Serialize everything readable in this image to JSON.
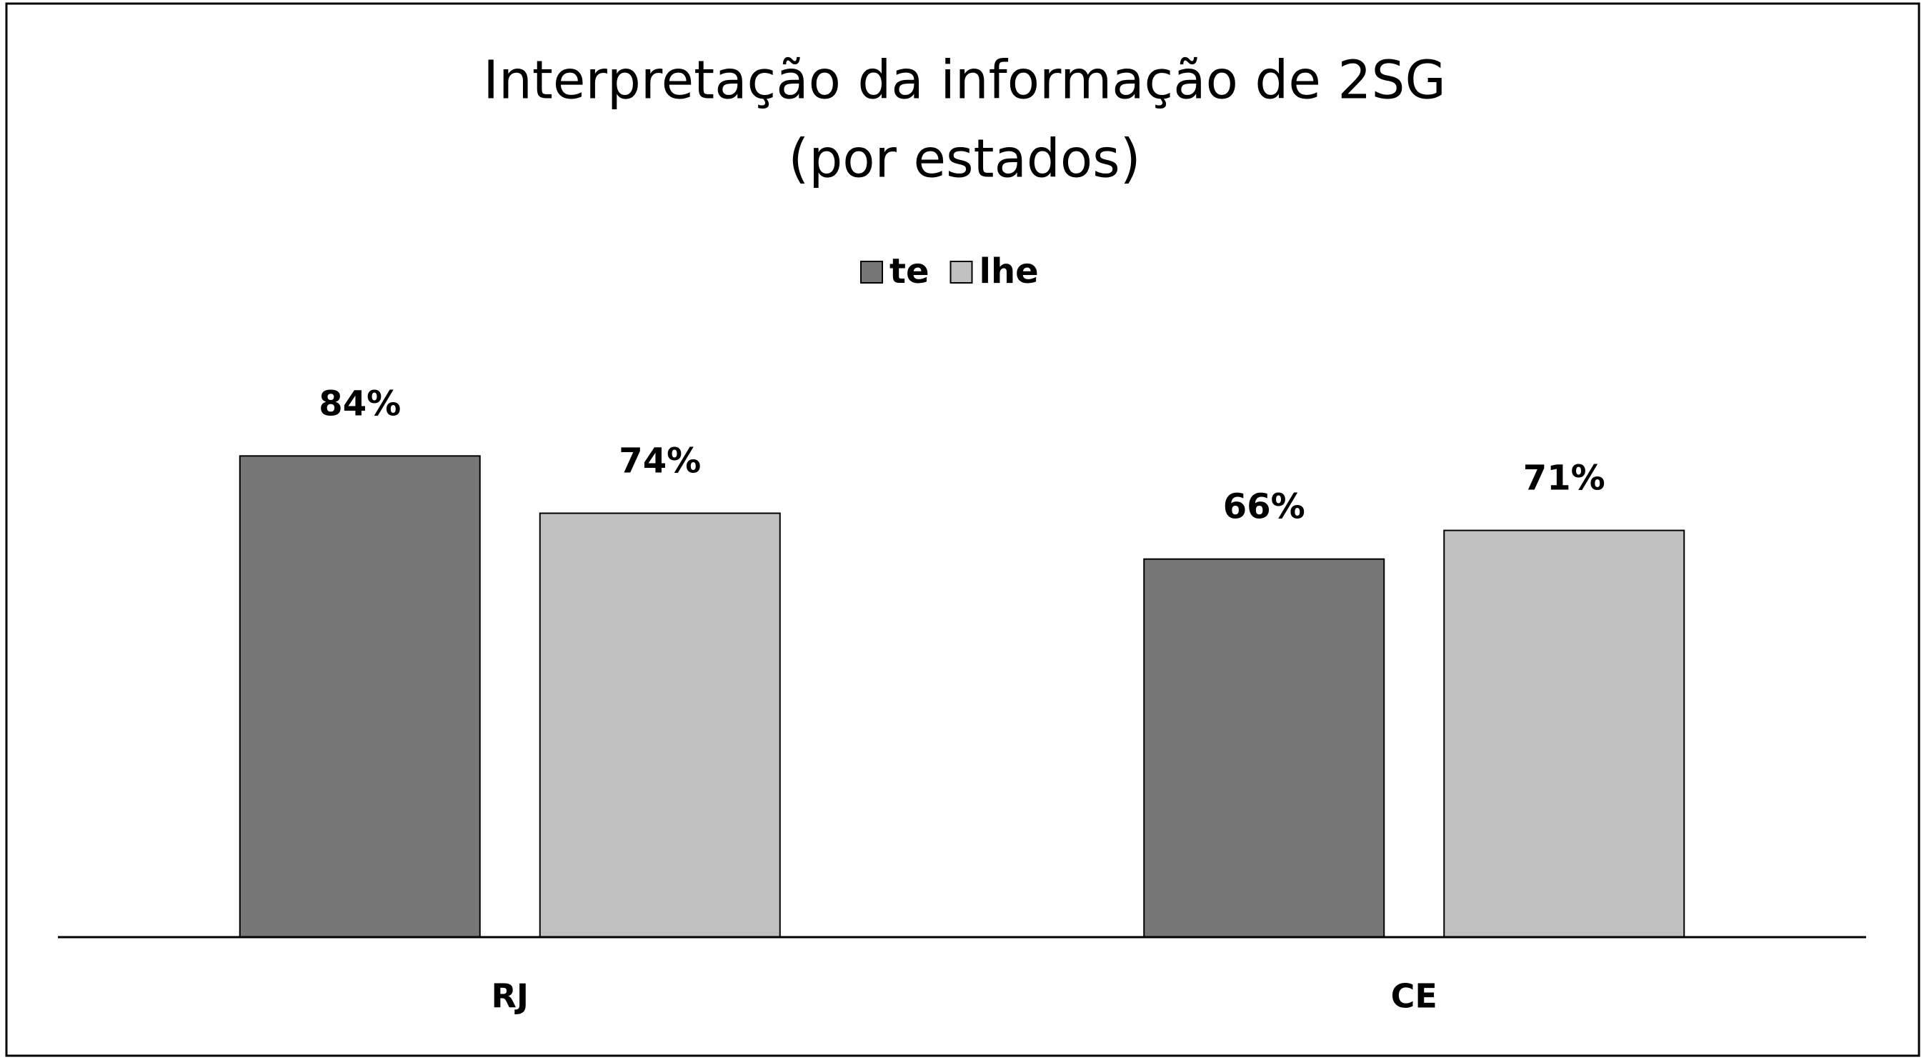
{
  "chart_data": {
    "type": "bar",
    "title": [
      "Interpretação da informação de 2SG",
      "(por estados)"
    ],
    "categories": [
      "RJ",
      "CE"
    ],
    "series": [
      {
        "name": "te",
        "color": "#777777",
        "values": [
          84,
          66
        ],
        "value_labels": [
          "84%",
          "66%"
        ]
      },
      {
        "name": "lhe",
        "color": "#c0c0c0",
        "values": [
          74,
          71
        ],
        "value_labels": [
          "74%",
          "71%"
        ]
      }
    ],
    "legend": "top"
  }
}
